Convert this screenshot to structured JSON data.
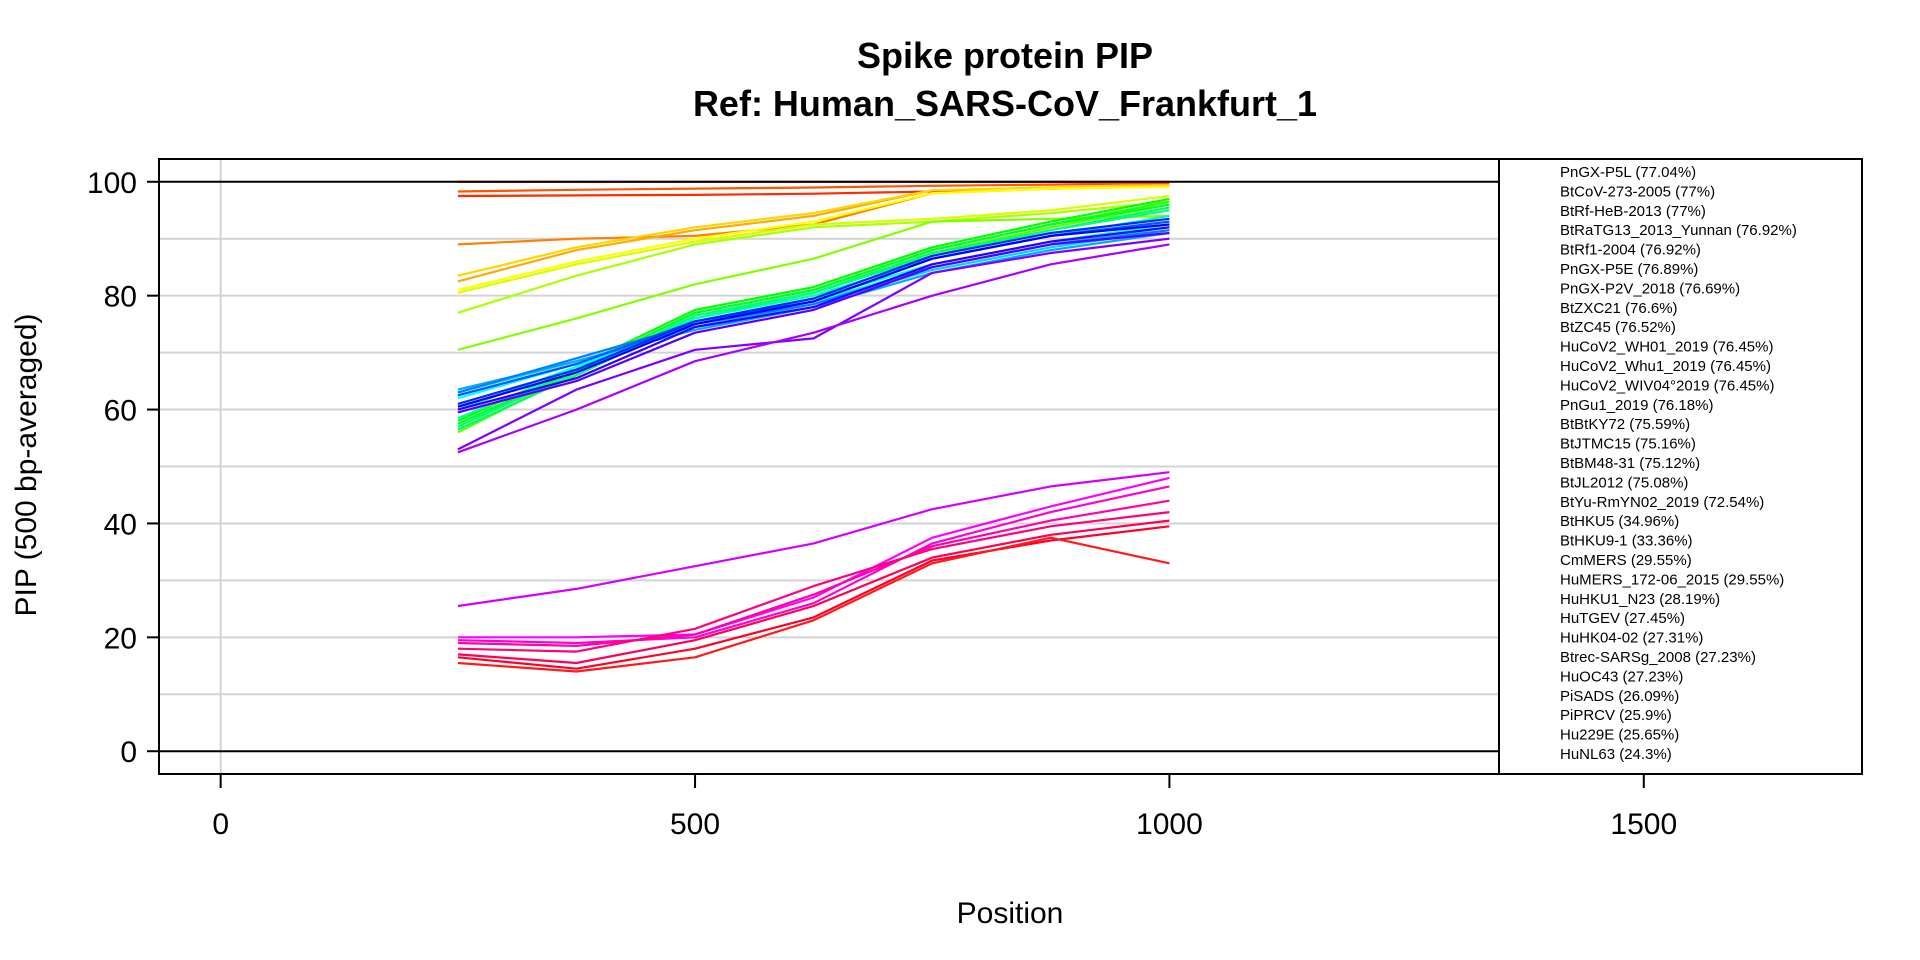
{
  "chart_data": {
    "type": "line",
    "title": "Spike protein PIP",
    "subtitle": "Ref: Human_SARS-CoV_Frankfurt_1",
    "xlabel": "Position",
    "ylabel": "PIP (500 bp-averaged)",
    "xlim": [
      -65,
      1730
    ],
    "ylim": [
      -4,
      104
    ],
    "xticks": [
      0,
      500,
      1000,
      1500
    ],
    "yticks": [
      0,
      20,
      40,
      60,
      80,
      100
    ],
    "grid": true,
    "hlines": [
      0,
      100
    ],
    "legend_position": "right",
    "x": [
      250,
      375,
      500,
      625,
      750,
      875,
      1000
    ],
    "series": [
      {
        "name": "PnGX-P5L (77.04%)",
        "color": "#ff0000",
        "values": [
          100,
          100,
          100,
          100,
          100,
          100,
          100
        ]
      },
      {
        "name": "BtCoV-273-2005 (77%)",
        "color": "#ff2a00",
        "values": [
          97.5,
          97.6,
          97.7,
          97.9,
          98.3,
          98.8,
          99.2
        ]
      },
      {
        "name": "BtRf-HeB-2013 (77%)",
        "color": "#ff5500",
        "values": [
          98.3,
          98.6,
          98.8,
          99.0,
          99.3,
          99.5,
          99.8
        ]
      },
      {
        "name": "BtRaTG13_2013_Yunnan (76.92%)",
        "color": "#ff7f00",
        "values": [
          89.0,
          90.0,
          90.5,
          92.5,
          98.0,
          98.8,
          99.3
        ]
      },
      {
        "name": "BtRf1-2004 (76.92%)",
        "color": "#ffaa00",
        "values": [
          82.5,
          88.0,
          91.5,
          94.0,
          98.5,
          99.0,
          99.4
        ]
      },
      {
        "name": "PnGX-P5E (76.89%)",
        "color": "#ffd400",
        "values": [
          83.5,
          88.5,
          92.0,
          94.5,
          98.5,
          99.0,
          99.3
        ]
      },
      {
        "name": "PnGX-P2V_2018 (76.69%)",
        "color": "#ffff00",
        "values": [
          81.0,
          86.0,
          90.0,
          93.0,
          98.0,
          98.8,
          99.1
        ]
      },
      {
        "name": "BtZXC21 (76.6%)",
        "color": "#d4ff00",
        "values": [
          80.5,
          85.5,
          89.5,
          92.5,
          93.5,
          95.0,
          97.5
        ]
      },
      {
        "name": "BtZC45 (76.52%)",
        "color": "#aaff00",
        "values": [
          77.0,
          83.5,
          89.0,
          92.0,
          93.0,
          94.5,
          96.5
        ]
      },
      {
        "name": "HuCoV2_WH01_2019 (76.45%)",
        "color": "#7fff00",
        "values": [
          70.5,
          76.0,
          82.0,
          86.5,
          93.0,
          93.5,
          94.0
        ]
      },
      {
        "name": "HuCoV2_Whu1_2019 (76.45%)",
        "color": "#55ff00",
        "values": [
          56.0,
          66.5,
          76.5,
          80.5,
          87.5,
          92.0,
          96.0
        ]
      },
      {
        "name": "HuCoV2_WIV04°2019 (76.45%)",
        "color": "#2aff00",
        "values": [
          57.0,
          67.0,
          77.0,
          81.0,
          88.0,
          92.5,
          96.5
        ]
      },
      {
        "name": "PnGu1_2019 (76.18%)",
        "color": "#00ff00",
        "values": [
          58.0,
          67.5,
          77.5,
          81.5,
          88.5,
          93.0,
          97.0
        ]
      },
      {
        "name": "BtBtKY72 (75.59%)",
        "color": "#00ff2a",
        "values": [
          57.5,
          67.0,
          77.0,
          81.0,
          88.0,
          92.5,
          96.0
        ]
      },
      {
        "name": "BtJTMC15 (75.16%)",
        "color": "#00ff55",
        "values": [
          56.5,
          66.0,
          76.0,
          80.5,
          87.5,
          91.5,
          95.5
        ]
      },
      {
        "name": "BtBM48-31 (75.12%)",
        "color": "#00ff7f",
        "values": [
          57.0,
          66.5,
          76.5,
          80.5,
          87.0,
          91.5,
          95.0
        ]
      },
      {
        "name": "BtJL2012 (75.08%)",
        "color": "#00ffaa",
        "values": [
          58.5,
          67.0,
          76.0,
          80.0,
          86.5,
          90.5,
          94.0
        ]
      },
      {
        "name": "BtYu-RmYN02_2019 (72.54%)",
        "color": "#00ffd4",
        "values": [
          60.0,
          67.5,
          75.5,
          79.5,
          85.5,
          89.5,
          92.5
        ]
      },
      {
        "name": "BtHKU5 (34.96%)",
        "color": "#00ffff",
        "values": [
          62.0,
          68.0,
          75.0,
          79.0,
          85.0,
          89.0,
          92.0
        ]
      },
      {
        "name": "BtHKU9-1 (33.36%)",
        "color": "#00d4ff",
        "values": [
          63.0,
          68.5,
          74.5,
          78.5,
          84.5,
          88.5,
          91.5
        ]
      },
      {
        "name": "CmMERS (29.55%)",
        "color": "#00aaff",
        "values": [
          63.5,
          68.5,
          74.0,
          78.0,
          84.0,
          88.0,
          91.0
        ]
      },
      {
        "name": "HuMERS_172-06_2015 (29.55%)",
        "color": "#007fff",
        "values": [
          63.0,
          69.0,
          75.0,
          78.5,
          85.0,
          89.0,
          91.5
        ]
      },
      {
        "name": "HuHKU1_N23 (28.19%)",
        "color": "#0055ff",
        "values": [
          62.5,
          68.0,
          75.5,
          79.0,
          86.5,
          90.5,
          93.0
        ]
      },
      {
        "name": "HuTGEV (27.45%)",
        "color": "#002aff",
        "values": [
          61.0,
          67.0,
          75.5,
          79.5,
          87.0,
          91.0,
          93.5
        ]
      },
      {
        "name": "HuHK04-02 (27.31%)",
        "color": "#0000ff",
        "values": [
          60.5,
          66.5,
          75.0,
          79.0,
          86.5,
          90.5,
          92.5
        ]
      },
      {
        "name": "Btrec-SARSg_2008 (27.23%)",
        "color": "#2a00ff",
        "values": [
          60.0,
          65.5,
          74.5,
          78.0,
          85.5,
          89.5,
          92.0
        ]
      },
      {
        "name": "HuOC43 (27.23%)",
        "color": "#5500ff",
        "values": [
          59.5,
          65.0,
          73.5,
          77.5,
          85.0,
          89.0,
          91.0
        ]
      },
      {
        "name": "PiSADS (26.09%)",
        "color": "#7f00ff",
        "values": [
          53.0,
          63.5,
          70.5,
          72.5,
          84.0,
          87.5,
          90.0
        ]
      },
      {
        "name": "PiPRCV (25.9%)",
        "color": "#aa00ff",
        "values": [
          52.5,
          60.0,
          68.5,
          73.5,
          80.0,
          85.5,
          89.0
        ]
      },
      {
        "name": "Hu229E (25.65%)",
        "color": "#d400ff",
        "values": [
          25.5,
          28.5,
          32.5,
          36.5,
          42.5,
          46.5,
          49.0
        ]
      },
      {
        "name": "HuNL63 (24.3%)",
        "color": "#ff00ff",
        "values": [
          20.0,
          20.0,
          20.5,
          27.0,
          37.5,
          43.0,
          48.0
        ]
      },
      {
        "name": "",
        "color": "#ff00d4",
        "values": [
          19.5,
          19.0,
          20.0,
          26.0,
          36.5,
          42.0,
          46.5
        ]
      },
      {
        "name": "",
        "color": "#ff00aa",
        "values": [
          19.0,
          18.5,
          20.5,
          27.5,
          36.0,
          40.5,
          44.0
        ]
      },
      {
        "name": "",
        "color": "#ff007f",
        "values": [
          18.0,
          17.5,
          21.5,
          29.0,
          35.5,
          39.5,
          42.0
        ]
      },
      {
        "name": "",
        "color": "#ff0055",
        "values": [
          17.0,
          15.5,
          19.5,
          25.5,
          34.0,
          38.0,
          40.5
        ]
      },
      {
        "name": "",
        "color": "#ff002a",
        "values": [
          16.5,
          14.5,
          18.0,
          23.5,
          33.5,
          37.0,
          39.5
        ]
      },
      {
        "name": "",
        "color": "#ff1a1a",
        "values": [
          15.5,
          14.0,
          16.5,
          23.0,
          33.0,
          37.5,
          33.0
        ]
      }
    ]
  }
}
